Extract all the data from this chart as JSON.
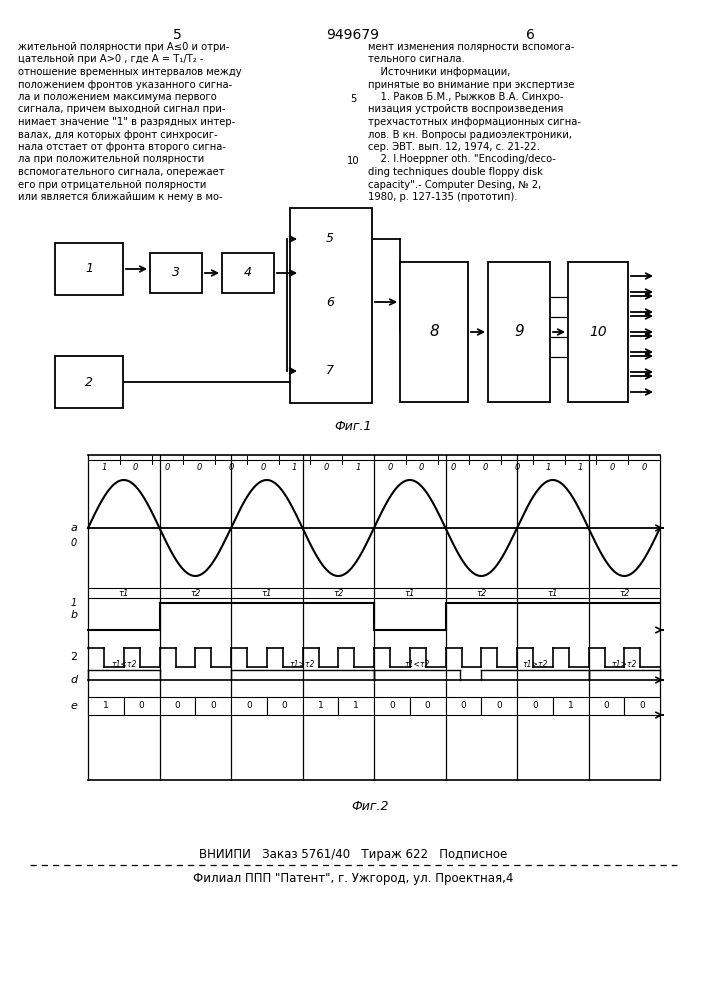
{
  "page_number_left": "5",
  "patent_number": "949679",
  "page_number_right": "6",
  "fig1_label": "Фиг.1",
  "fig2_label": "Фиг.2",
  "footer_line1": "ВНИИПИ   Заказ 5761/40   Тираж 622   Подписное",
  "footer_line2": "Филиал ППП \"Патент\", г. Ужгород, ул. Проектная,4",
  "left_col_lines": [
    "жительной полярности при A≤0 и отри-",
    "цательной при A>0 , где A = T₁/T₂ -",
    "отношение временных интервалов между",
    "положением фронтов указанного сигна-",
    "ла и положением максимума первого",
    "сигнала, причем выходной сигнал при-",
    "нимает значение \"1\" в разрядных интер-",
    "валах, для которых фронт синхросиг-",
    "нала отстает от фронта второго сигна-",
    "ла при положительной полярности",
    "вспомогательного сигнала, опережает",
    "его при отрицательной полярности",
    "или является ближайшим к нему в мо-"
  ],
  "right_col_lines": [
    "мент изменения полярности вспомога-",
    "тельного сигнала.",
    "    Источники информации,",
    "принятые во внимание при экспертизе",
    "    1. Раков Б.М., Рыжков В.А. Синхро-",
    "низация устройств воспроизведения",
    "трехчастотных информационных сигна-",
    "лов. В кн. Вопросы радиоэлектроники,",
    "сер. ЭВТ. вып. 12, 1974, с. 21-22.",
    "    2. I.Hoeppner oth. \"Encoding/deco-",
    "ding techniques double floppy disk",
    "capacity\".- Computer Desing, № 2,",
    "1980, p. 127-135 (прототип)."
  ],
  "top_bits": [
    "1",
    "0",
    "0",
    "0",
    "0",
    "0",
    "1",
    "0",
    "1",
    "0",
    "0",
    "0",
    "0",
    "0",
    "1",
    "1",
    "0",
    "0"
  ],
  "bot_bits": [
    "1",
    "0",
    "0",
    "0",
    "0",
    "0",
    "1",
    "1",
    "0",
    "0",
    "0",
    "0",
    "0",
    "1",
    "0",
    "0"
  ],
  "t1t2_labels": [
    "τ1",
    "τ2",
    "τ1",
    "τ2",
    "τ1",
    "τ2",
    "τ1",
    "τ2"
  ],
  "d_row_labels": [
    [
      0.5,
      "τ1<τ2"
    ],
    [
      2.2,
      "τ1>τ2"
    ],
    [
      4.5,
      "τ1<τ2"
    ],
    [
      5.8,
      "τ1>τ2"
    ],
    [
      7.2,
      "τ1>τ2"
    ]
  ]
}
